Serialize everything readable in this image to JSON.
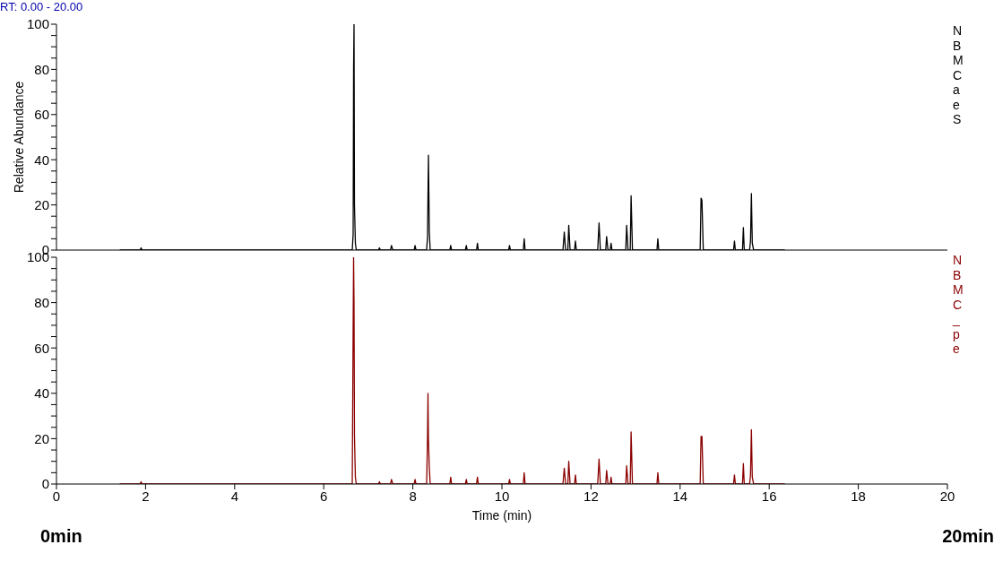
{
  "chart_data": [
    {
      "type": "line",
      "title": "RT: 0.00 - 20.00",
      "ylabel": "Relative Abundance",
      "tick_labels": "y",
      "annotations": [
        "N",
        "B",
        "M",
        "C",
        "a",
        "e",
        "S"
      ],
      "xlim": [
        0,
        20
      ],
      "xticks": [
        0,
        2,
        4,
        6,
        8,
        10,
        12,
        14,
        16,
        18,
        20
      ],
      "ylim": [
        0,
        100
      ],
      "yticks": [
        0,
        {
          "value": 5,
          "label": null
        },
        {
          "value": 10,
          "label": null
        },
        {
          "value": 15,
          "label": null
        },
        20,
        {
          "value": 25,
          "label": null
        },
        {
          "value": 30,
          "label": null
        },
        {
          "value": 35,
          "label": null
        },
        40,
        {
          "value": 45,
          "label": null
        },
        {
          "value": 50,
          "label": null
        },
        {
          "value": 55,
          "label": null
        },
        60,
        {
          "value": 65,
          "label": null
        },
        {
          "value": 70,
          "label": null
        },
        {
          "value": 75,
          "label": null
        },
        80,
        {
          "value": 85,
          "label": null
        },
        {
          "value": 90,
          "label": null
        },
        {
          "value": 95,
          "label": null
        },
        100
      ],
      "x": [
        1.42,
        1.88,
        1.9,
        1.92,
        6.64,
        6.66,
        6.67,
        6.68,
        6.69,
        6.71,
        6.73,
        7.23,
        7.25,
        7.27,
        7.5,
        7.52,
        7.55,
        8.03,
        8.05,
        8.07,
        8.31,
        8.33,
        8.34,
        8.35,
        8.37,
        8.39,
        8.83,
        8.85,
        8.87,
        9.18,
        9.2,
        9.22,
        9.43,
        9.45,
        9.47,
        10.15,
        10.17,
        10.19,
        10.48,
        10.5,
        10.52,
        11.37,
        11.4,
        11.43,
        11.48,
        11.5,
        11.53,
        11.63,
        11.65,
        11.67,
        12.15,
        12.18,
        12.21,
        12.33,
        12.35,
        12.38,
        12.43,
        12.45,
        12.47,
        12.78,
        12.8,
        12.83,
        12.88,
        12.9,
        12.93,
        13.48,
        13.5,
        13.52,
        14.45,
        14.47,
        14.49,
        14.52,
        15.2,
        15.22,
        15.24,
        15.4,
        15.42,
        15.44,
        15.56,
        15.58,
        15.6,
        15.62,
        15.65,
        16.35
      ],
      "series": [
        {
          "color": "#000000",
          "values": [
            0,
            0,
            1,
            0,
            0,
            7,
            81,
            100,
            20,
            3,
            0,
            0,
            1,
            0,
            0,
            2,
            0,
            0,
            2,
            0,
            0,
            6,
            24,
            42,
            8,
            0,
            0,
            2,
            0,
            0,
            2,
            0,
            0,
            3,
            0,
            0,
            2,
            0,
            0,
            5,
            0,
            0,
            8,
            0,
            0,
            11,
            0,
            0,
            4,
            0,
            0,
            12,
            0,
            0,
            6,
            0,
            0,
            3,
            0,
            0,
            11,
            0,
            0,
            24,
            0,
            0,
            5,
            0,
            0,
            23,
            22,
            0,
            0,
            4,
            0,
            0,
            10,
            0,
            0,
            4,
            25,
            3,
            0,
            0
          ]
        }
      ]
    },
    {
      "type": "line",
      "xlabel": "Time (min)",
      "annotations": [
        "N",
        "B",
        "M",
        "C",
        "_",
        "p",
        "e",
        "0min",
        "20min"
      ],
      "xlim": [
        0,
        20
      ],
      "xticks": [
        0,
        2,
        4,
        6,
        8,
        10,
        12,
        14,
        16,
        18,
        20
      ],
      "ylim": [
        0,
        100
      ],
      "yticks": [
        0,
        {
          "value": 5,
          "label": null
        },
        {
          "value": 10,
          "label": null
        },
        {
          "value": 15,
          "label": null
        },
        20,
        {
          "value": 25,
          "label": null
        },
        {
          "value": 30,
          "label": null
        },
        {
          "value": 35,
          "label": null
        },
        40,
        {
          "value": 45,
          "label": null
        },
        {
          "value": 50,
          "label": null
        },
        {
          "value": 55,
          "label": null
        },
        60,
        {
          "value": 65,
          "label": null
        },
        {
          "value": 70,
          "label": null
        },
        {
          "value": 75,
          "label": null
        },
        80,
        {
          "value": 85,
          "label": null
        },
        {
          "value": 90,
          "label": null
        },
        {
          "value": 95,
          "label": null
        },
        100
      ],
      "x": [
        1.42,
        1.88,
        1.9,
        1.92,
        6.64,
        6.66,
        6.67,
        6.68,
        6.69,
        6.71,
        6.73,
        7.23,
        7.25,
        7.27,
        7.5,
        7.52,
        7.55,
        8.03,
        8.05,
        8.07,
        8.31,
        8.33,
        8.34,
        8.35,
        8.37,
        8.39,
        8.83,
        8.85,
        8.87,
        9.18,
        9.2,
        9.22,
        9.43,
        9.45,
        9.47,
        10.15,
        10.17,
        10.19,
        10.48,
        10.5,
        10.52,
        11.37,
        11.4,
        11.43,
        11.48,
        11.5,
        11.53,
        11.63,
        11.65,
        11.67,
        12.15,
        12.18,
        12.21,
        12.33,
        12.35,
        12.38,
        12.43,
        12.45,
        12.47,
        12.78,
        12.8,
        12.83,
        12.88,
        12.9,
        12.93,
        13.48,
        13.5,
        13.52,
        14.45,
        14.47,
        14.49,
        14.52,
        15.2,
        15.22,
        15.24,
        15.4,
        15.42,
        15.44,
        15.56,
        15.58,
        15.6,
        15.62,
        15.65,
        16.35
      ],
      "series": [
        {
          "color": "#8b0000",
          "values": [
            0,
            0,
            1,
            0,
            0,
            69,
            100,
            80,
            21,
            3,
            0,
            0,
            1,
            0,
            0,
            2,
            0,
            0,
            2,
            0,
            0,
            21,
            40,
            20,
            7,
            0,
            0,
            3,
            0,
            0,
            2,
            0,
            0,
            3,
            0,
            0,
            2,
            0,
            0,
            5,
            0,
            0,
            7,
            0,
            0,
            10,
            0,
            0,
            4,
            0,
            0,
            11,
            0,
            0,
            6,
            0,
            0,
            3,
            0,
            0,
            8,
            0,
            0,
            23,
            0,
            0,
            5,
            0,
            0,
            21,
            21,
            0,
            0,
            4,
            0,
            0,
            9,
            0,
            0,
            4,
            24,
            3,
            0,
            0
          ]
        }
      ]
    }
  ]
}
